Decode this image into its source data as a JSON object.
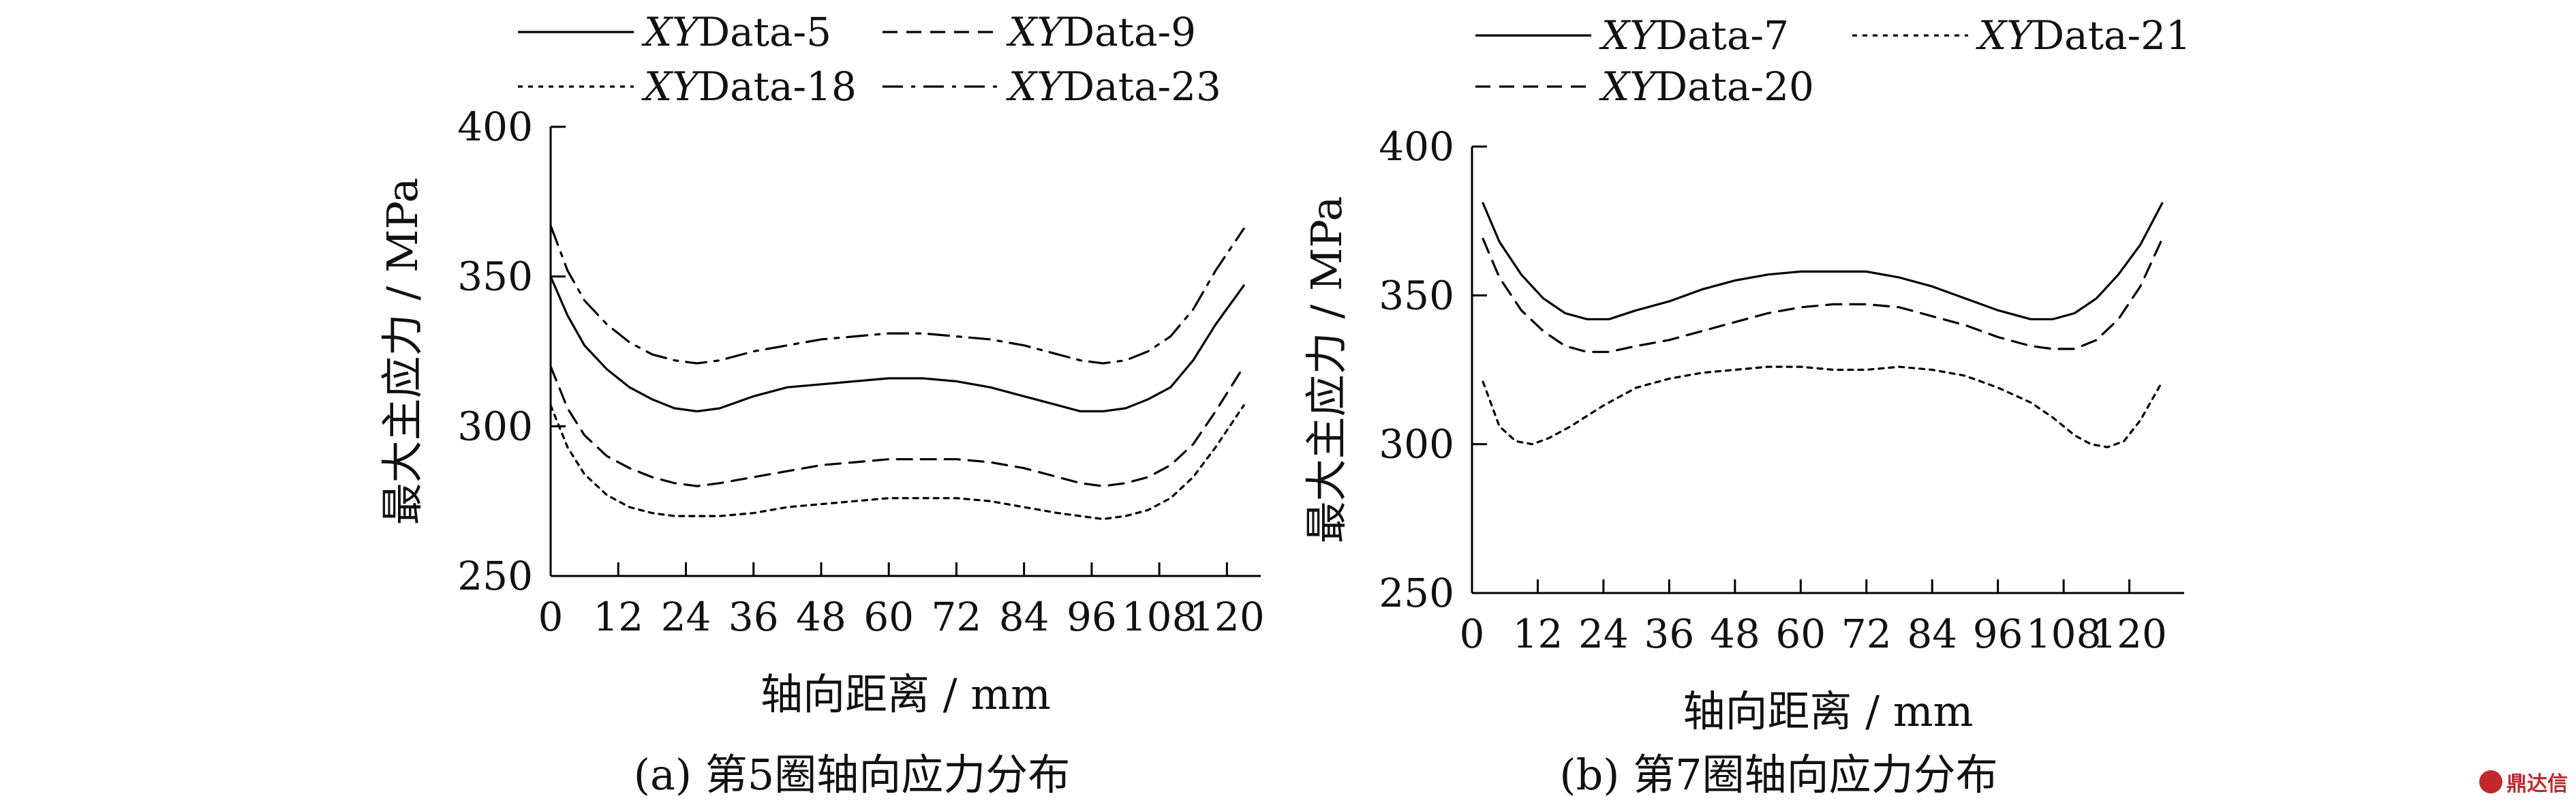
{
  "chart_data": [
    {
      "type": "line",
      "caption": "(a) 第5圈轴向应力分布",
      "xlabel": "轴向距离 / mm",
      "ylabel": "最大主应力 / MPa",
      "xlim": [
        0,
        126
      ],
      "ylim": [
        250,
        400
      ],
      "xticks": [
        0,
        12,
        24,
        36,
        48,
        60,
        72,
        84,
        96,
        108,
        120
      ],
      "yticks": [
        250,
        300,
        350,
        400
      ],
      "legend_placement": "top",
      "series": [
        {
          "name": "Data-5",
          "name_prefix": "XY",
          "style": "solid",
          "x": [
            0,
            3,
            6,
            10,
            14,
            18,
            22,
            26,
            30,
            36,
            42,
            48,
            54,
            60,
            66,
            72,
            78,
            84,
            90,
            94,
            98,
            102,
            106,
            110,
            114,
            118,
            123
          ],
          "y": [
            350,
            337,
            327,
            319,
            313,
            309,
            306,
            305,
            306,
            310,
            313,
            314,
            315,
            316,
            316,
            315,
            313,
            310,
            307,
            305,
            305,
            306,
            309,
            313,
            322,
            334,
            347
          ]
        },
        {
          "name": "Data-9",
          "name_prefix": "XY",
          "style": "dashed",
          "x": [
            0,
            3,
            6,
            10,
            14,
            18,
            22,
            26,
            30,
            36,
            42,
            48,
            54,
            60,
            66,
            72,
            78,
            84,
            90,
            94,
            98,
            102,
            106,
            110,
            114,
            118,
            123
          ],
          "y": [
            320,
            306,
            297,
            290,
            286,
            283,
            281,
            280,
            281,
            283,
            285,
            287,
            288,
            289,
            289,
            289,
            288,
            286,
            283,
            281,
            280,
            281,
            283,
            287,
            294,
            305,
            320
          ]
        },
        {
          "name": "Data-18",
          "name_prefix": "XY",
          "style": "dotted",
          "x": [
            0,
            3,
            6,
            10,
            14,
            18,
            22,
            26,
            30,
            36,
            42,
            48,
            54,
            60,
            66,
            72,
            78,
            84,
            90,
            94,
            98,
            102,
            106,
            110,
            114,
            118,
            123
          ],
          "y": [
            307,
            293,
            284,
            277,
            273,
            271,
            270,
            270,
            270,
            271,
            273,
            274,
            275,
            276,
            276,
            276,
            275,
            273,
            271,
            270,
            269,
            270,
            272,
            276,
            283,
            293,
            307
          ]
        },
        {
          "name": "Data-23",
          "name_prefix": "XY",
          "style": "dashdot",
          "x": [
            0,
            3,
            6,
            10,
            14,
            18,
            22,
            26,
            30,
            36,
            42,
            48,
            54,
            60,
            66,
            72,
            78,
            84,
            90,
            94,
            98,
            102,
            106,
            110,
            114,
            118,
            123
          ],
          "y": [
            367,
            352,
            342,
            334,
            328,
            324,
            322,
            321,
            322,
            325,
            327,
            329,
            330,
            331,
            331,
            330,
            329,
            327,
            324,
            322,
            321,
            322,
            325,
            330,
            339,
            352,
            366
          ]
        }
      ]
    },
    {
      "type": "line",
      "caption": "(b) 第7圈轴向应力分布",
      "xlabel": "轴向距离 / mm",
      "ylabel": "最大主应力 / MPa",
      "xlim": [
        0,
        130
      ],
      "ylim": [
        250,
        400
      ],
      "xticks": [
        0,
        12,
        24,
        36,
        48,
        60,
        72,
        84,
        96,
        108,
        120
      ],
      "yticks": [
        250,
        300,
        350,
        400
      ],
      "legend_placement": "top",
      "series": [
        {
          "name": "Data-7",
          "name_prefix": "XY",
          "style": "solid",
          "x": [
            2,
            5,
            9,
            13,
            17,
            21,
            25,
            30,
            36,
            42,
            48,
            54,
            60,
            66,
            72,
            78,
            84,
            90,
            96,
            102,
            106,
            110,
            114,
            118,
            122,
            126
          ],
          "y": [
            381,
            368,
            357,
            349,
            344,
            342,
            342,
            345,
            348,
            352,
            355,
            357,
            358,
            358,
            358,
            356,
            353,
            349,
            345,
            342,
            342,
            344,
            349,
            357,
            367,
            381
          ]
        },
        {
          "name": "Data-21",
          "name_prefix": "XY",
          "style": "dotted",
          "x": [
            2,
            5,
            8,
            11,
            14,
            18,
            24,
            30,
            36,
            42,
            48,
            54,
            60,
            66,
            72,
            78,
            84,
            90,
            96,
            102,
            106,
            110,
            113,
            116,
            119,
            122,
            126
          ],
          "y": [
            321,
            306,
            301,
            300,
            302,
            306,
            313,
            319,
            322,
            324,
            325,
            326,
            326,
            325,
            325,
            326,
            325,
            323,
            319,
            314,
            309,
            303,
            300,
            299,
            301,
            308,
            321
          ]
        },
        {
          "name": "Data-20",
          "name_prefix": "XY",
          "style": "dashed",
          "x": [
            2,
            5,
            9,
            13,
            17,
            21,
            25,
            30,
            36,
            42,
            48,
            54,
            60,
            66,
            72,
            78,
            84,
            90,
            96,
            102,
            106,
            110,
            114,
            118,
            122,
            126
          ],
          "y": [
            369,
            356,
            345,
            338,
            333,
            331,
            331,
            333,
            335,
            338,
            341,
            344,
            346,
            347,
            347,
            346,
            343,
            340,
            336,
            333,
            332,
            332,
            335,
            342,
            353,
            369
          ]
        }
      ]
    }
  ],
  "watermark": "鼎达信"
}
